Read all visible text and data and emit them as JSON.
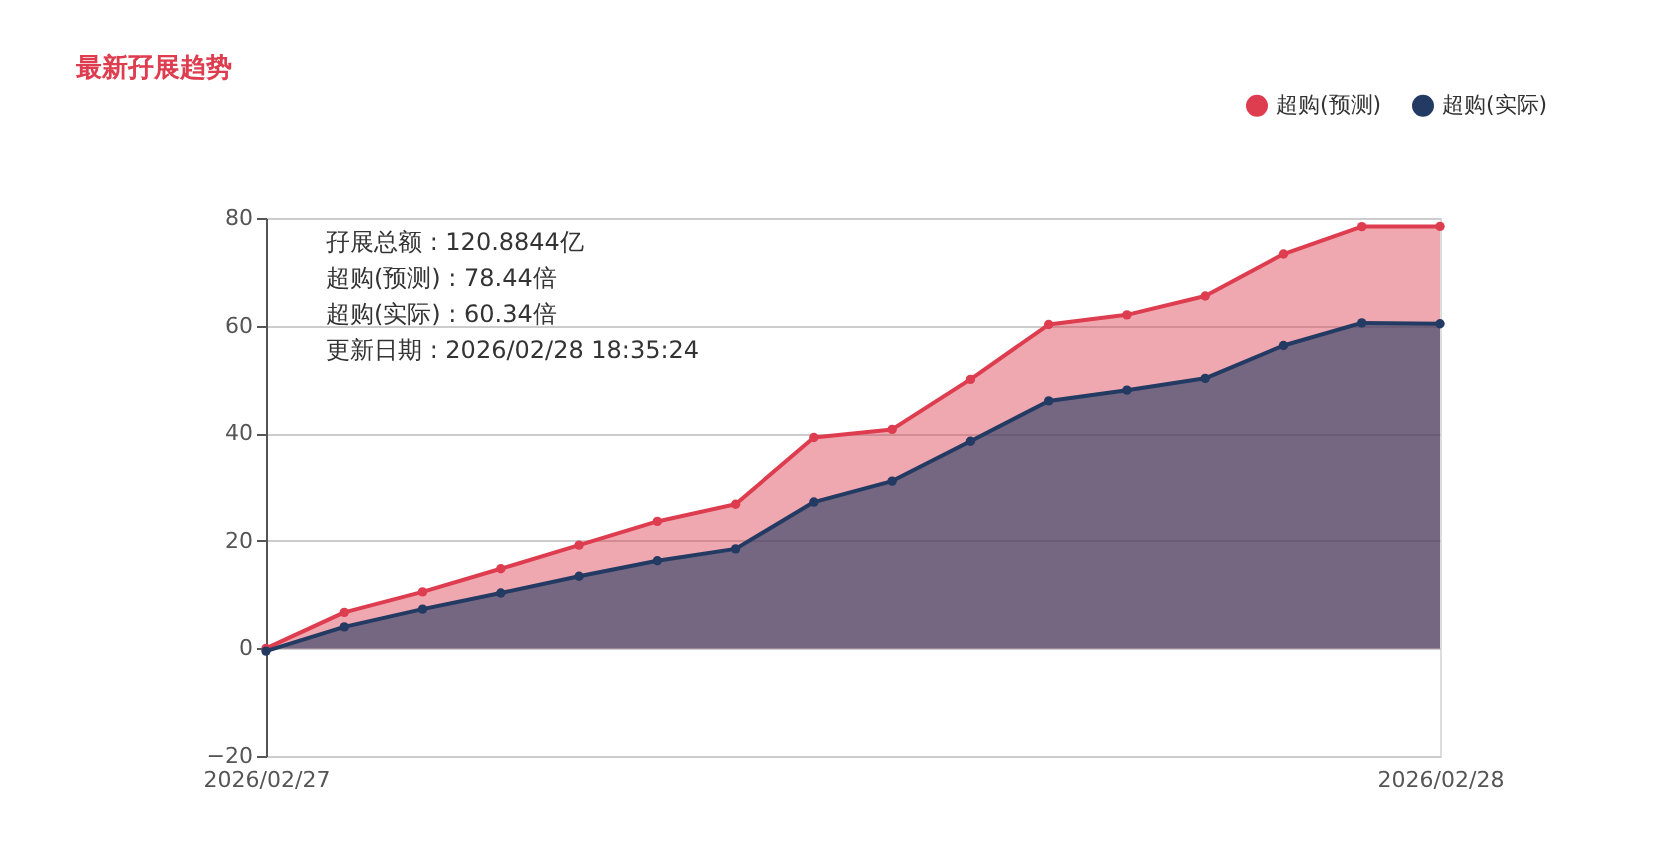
{
  "chart_data": {
    "type": "area",
    "title": "最新孖展趋势",
    "categories": [
      "2026/02/27",
      null,
      null,
      null,
      null,
      null,
      null,
      null,
      null,
      null,
      null,
      null,
      null,
      null,
      null,
      "2026/02/28"
    ],
    "series": [
      {
        "name": "超购(预测)",
        "color": "#dd3d4f",
        "values": [
          0,
          6.7,
          10.5,
          14.8,
          19.2,
          23.6,
          26.8,
          39.2,
          40.7,
          50,
          60.2,
          62.0,
          65.5,
          73.3,
          78.4,
          78.44
        ]
      },
      {
        "name": "超购(实际)",
        "color": "#233a63",
        "values": [
          -0.5,
          4.0,
          7.3,
          10.3,
          13.4,
          16.3,
          18.5,
          27.2,
          31.1,
          38.5,
          46,
          48,
          50.2,
          56.3,
          60.5,
          60.34
        ]
      }
    ],
    "ylim": [
      -20,
      80
    ],
    "yticks": [
      -20,
      0,
      20,
      40,
      60,
      80
    ],
    "grid": "y",
    "legend": "top right",
    "marker": "circle",
    "annotations": [
      "孖展总额 : 120.8844亿",
      "超购(预测) : 78.44倍",
      "超购(实际) : 60.34倍",
      "更新日期 : 2026/02/28 18:35:24"
    ]
  }
}
